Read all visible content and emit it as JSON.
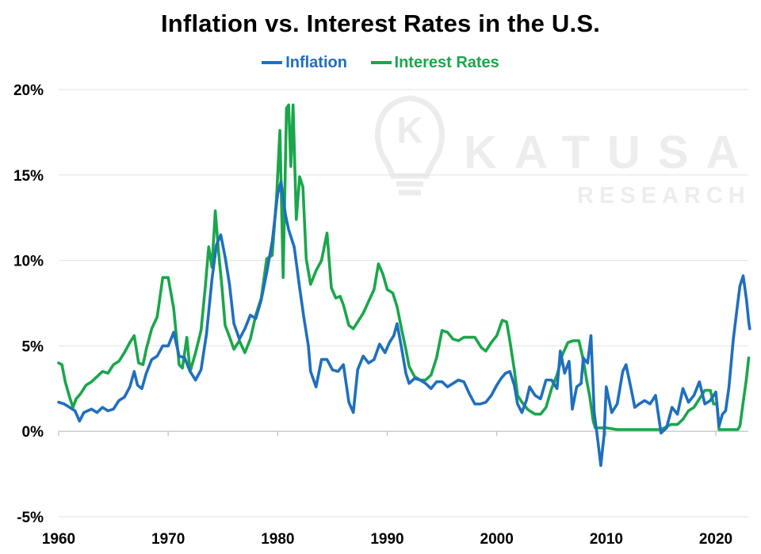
{
  "chart_data": {
    "type": "line",
    "title": "Inflation vs. Interest Rates in the U.S.",
    "xlabel": "",
    "ylabel": "",
    "xlim": [
      1960,
      2023
    ],
    "ylim": [
      -5,
      20
    ],
    "x_ticks": [
      1960,
      1970,
      1980,
      1990,
      2000,
      2010,
      2020
    ],
    "x_tick_labels": [
      "1960",
      "1970",
      "1980",
      "1990",
      "2000",
      "2010",
      "2020"
    ],
    "y_ticks": [
      -5,
      0,
      5,
      10,
      15,
      20
    ],
    "y_tick_labels": [
      "-5%",
      "0%",
      "5%",
      "10%",
      "15%",
      "20%"
    ],
    "grid": "horizontal",
    "legend_position": "top-center",
    "series": [
      {
        "name": "Inflation",
        "color": "#1f6fbf",
        "points": [
          [
            1960.0,
            1.7
          ],
          [
            1960.5,
            1.6
          ],
          [
            1961.0,
            1.4
          ],
          [
            1961.5,
            1.2
          ],
          [
            1961.9,
            0.6
          ],
          [
            1962.3,
            1.1
          ],
          [
            1963.0,
            1.3
          ],
          [
            1963.5,
            1.1
          ],
          [
            1964.0,
            1.4
          ],
          [
            1964.5,
            1.2
          ],
          [
            1965.0,
            1.3
          ],
          [
            1965.5,
            1.8
          ],
          [
            1966.0,
            2.0
          ],
          [
            1966.5,
            2.6
          ],
          [
            1966.9,
            3.5
          ],
          [
            1967.2,
            2.7
          ],
          [
            1967.6,
            2.5
          ],
          [
            1968.0,
            3.4
          ],
          [
            1968.5,
            4.2
          ],
          [
            1969.0,
            4.4
          ],
          [
            1969.5,
            5.0
          ],
          [
            1970.0,
            5.0
          ],
          [
            1970.5,
            5.8
          ],
          [
            1971.0,
            4.4
          ],
          [
            1971.5,
            4.3
          ],
          [
            1972.0,
            3.5
          ],
          [
            1972.5,
            3.0
          ],
          [
            1973.0,
            3.6
          ],
          [
            1973.5,
            5.7
          ],
          [
            1974.0,
            8.9
          ],
          [
            1974.4,
            10.9
          ],
          [
            1974.8,
            11.5
          ],
          [
            1975.2,
            10.2
          ],
          [
            1975.6,
            8.6
          ],
          [
            1976.0,
            6.3
          ],
          [
            1976.5,
            5.4
          ],
          [
            1977.0,
            6.0
          ],
          [
            1977.5,
            6.8
          ],
          [
            1978.0,
            6.6
          ],
          [
            1978.5,
            7.7
          ],
          [
            1979.0,
            9.3
          ],
          [
            1979.5,
            11.1
          ],
          [
            1980.0,
            13.9
          ],
          [
            1980.3,
            14.6
          ],
          [
            1980.7,
            12.7
          ],
          [
            1981.0,
            11.8
          ],
          [
            1981.5,
            10.8
          ],
          [
            1982.0,
            8.4
          ],
          [
            1982.4,
            6.6
          ],
          [
            1982.8,
            5.0
          ],
          [
            1983.0,
            3.5
          ],
          [
            1983.5,
            2.6
          ],
          [
            1984.0,
            4.2
          ],
          [
            1984.5,
            4.2
          ],
          [
            1985.0,
            3.6
          ],
          [
            1985.5,
            3.5
          ],
          [
            1986.0,
            3.9
          ],
          [
            1986.5,
            1.7
          ],
          [
            1986.9,
            1.1
          ],
          [
            1987.3,
            3.6
          ],
          [
            1987.8,
            4.4
          ],
          [
            1988.3,
            4.0
          ],
          [
            1988.8,
            4.2
          ],
          [
            1989.3,
            5.1
          ],
          [
            1989.8,
            4.6
          ],
          [
            1990.2,
            5.2
          ],
          [
            1990.6,
            5.6
          ],
          [
            1990.9,
            6.3
          ],
          [
            1991.3,
            4.9
          ],
          [
            1991.7,
            3.4
          ],
          [
            1992.0,
            2.8
          ],
          [
            1992.5,
            3.1
          ],
          [
            1993.0,
            3.0
          ],
          [
            1993.5,
            2.8
          ],
          [
            1994.0,
            2.5
          ],
          [
            1994.5,
            2.9
          ],
          [
            1995.0,
            2.9
          ],
          [
            1995.5,
            2.6
          ],
          [
            1996.0,
            2.8
          ],
          [
            1996.5,
            3.0
          ],
          [
            1997.0,
            2.9
          ],
          [
            1997.5,
            2.2
          ],
          [
            1998.0,
            1.6
          ],
          [
            1998.5,
            1.6
          ],
          [
            1999.0,
            1.7
          ],
          [
            1999.5,
            2.1
          ],
          [
            2000.0,
            2.7
          ],
          [
            2000.4,
            3.1
          ],
          [
            2000.8,
            3.4
          ],
          [
            2001.2,
            3.5
          ],
          [
            2001.6,
            2.7
          ],
          [
            2001.9,
            1.6
          ],
          [
            2002.3,
            1.1
          ],
          [
            2002.7,
            1.8
          ],
          [
            2003.0,
            2.6
          ],
          [
            2003.5,
            2.1
          ],
          [
            2004.0,
            1.9
          ],
          [
            2004.5,
            3.0
          ],
          [
            2005.0,
            3.0
          ],
          [
            2005.5,
            2.5
          ],
          [
            2005.8,
            4.7
          ],
          [
            2006.2,
            3.4
          ],
          [
            2006.6,
            4.1
          ],
          [
            2006.9,
            1.3
          ],
          [
            2007.3,
            2.6
          ],
          [
            2007.7,
            2.8
          ],
          [
            2007.9,
            4.3
          ],
          [
            2008.3,
            4.0
          ],
          [
            2008.6,
            5.6
          ],
          [
            2008.9,
            1.1
          ],
          [
            2009.2,
            -0.4
          ],
          [
            2009.5,
            -2.0
          ],
          [
            2009.8,
            -0.2
          ],
          [
            2010.0,
            2.6
          ],
          [
            2010.5,
            1.1
          ],
          [
            2011.0,
            1.6
          ],
          [
            2011.5,
            3.5
          ],
          [
            2011.8,
            3.9
          ],
          [
            2012.2,
            2.7
          ],
          [
            2012.6,
            1.4
          ],
          [
            2013.0,
            1.6
          ],
          [
            2013.5,
            1.8
          ],
          [
            2014.0,
            1.6
          ],
          [
            2014.5,
            2.1
          ],
          [
            2015.0,
            -0.1
          ],
          [
            2015.5,
            0.2
          ],
          [
            2016.0,
            1.4
          ],
          [
            2016.5,
            1.0
          ],
          [
            2017.0,
            2.5
          ],
          [
            2017.5,
            1.7
          ],
          [
            2018.0,
            2.1
          ],
          [
            2018.5,
            2.9
          ],
          [
            2019.0,
            1.6
          ],
          [
            2019.5,
            1.8
          ],
          [
            2020.0,
            2.3
          ],
          [
            2020.3,
            0.3
          ],
          [
            2020.6,
            1.0
          ],
          [
            2020.9,
            1.2
          ],
          [
            2021.2,
            2.6
          ],
          [
            2021.6,
            5.4
          ],
          [
            2021.9,
            7.0
          ],
          [
            2022.2,
            8.5
          ],
          [
            2022.5,
            9.1
          ],
          [
            2022.8,
            7.7
          ],
          [
            2023.0,
            6.4
          ],
          [
            2023.1,
            6.0
          ]
        ]
      },
      {
        "name": "Interest Rates",
        "color": "#1aa64b",
        "points": [
          [
            1960.0,
            4.0
          ],
          [
            1960.3,
            3.9
          ],
          [
            1960.6,
            2.9
          ],
          [
            1961.0,
            2.0
          ],
          [
            1961.3,
            1.4
          ],
          [
            1961.6,
            1.9
          ],
          [
            1962.0,
            2.2
          ],
          [
            1962.5,
            2.7
          ],
          [
            1963.0,
            2.9
          ],
          [
            1963.5,
            3.2
          ],
          [
            1964.0,
            3.5
          ],
          [
            1964.5,
            3.4
          ],
          [
            1965.0,
            3.9
          ],
          [
            1965.5,
            4.1
          ],
          [
            1966.0,
            4.6
          ],
          [
            1966.5,
            5.2
          ],
          [
            1966.9,
            5.6
          ],
          [
            1967.3,
            4.0
          ],
          [
            1967.7,
            3.9
          ],
          [
            1968.0,
            4.8
          ],
          [
            1968.5,
            6.0
          ],
          [
            1969.0,
            6.7
          ],
          [
            1969.5,
            9.0
          ],
          [
            1970.0,
            9.0
          ],
          [
            1970.5,
            7.2
          ],
          [
            1971.0,
            3.9
          ],
          [
            1971.3,
            3.7
          ],
          [
            1971.7,
            5.5
          ],
          [
            1972.0,
            3.5
          ],
          [
            1972.5,
            4.6
          ],
          [
            1973.0,
            5.9
          ],
          [
            1973.4,
            8.5
          ],
          [
            1973.7,
            10.8
          ],
          [
            1974.0,
            9.6
          ],
          [
            1974.3,
            12.9
          ],
          [
            1974.6,
            10.5
          ],
          [
            1974.9,
            8.5
          ],
          [
            1975.2,
            6.2
          ],
          [
            1975.5,
            5.7
          ],
          [
            1976.0,
            4.8
          ],
          [
            1976.5,
            5.3
          ],
          [
            1977.0,
            4.6
          ],
          [
            1977.5,
            5.4
          ],
          [
            1978.0,
            6.8
          ],
          [
            1978.5,
            7.8
          ],
          [
            1979.0,
            10.1
          ],
          [
            1979.5,
            10.3
          ],
          [
            1979.9,
            13.8
          ],
          [
            1980.2,
            17.6
          ],
          [
            1980.5,
            9.0
          ],
          [
            1980.8,
            18.9
          ],
          [
            1981.0,
            19.1
          ],
          [
            1981.2,
            15.5
          ],
          [
            1981.4,
            19.1
          ],
          [
            1981.7,
            12.4
          ],
          [
            1982.0,
            14.9
          ],
          [
            1982.3,
            14.3
          ],
          [
            1982.6,
            10.1
          ],
          [
            1983.0,
            8.6
          ],
          [
            1983.5,
            9.4
          ],
          [
            1984.0,
            10.0
          ],
          [
            1984.5,
            11.6
          ],
          [
            1984.9,
            8.4
          ],
          [
            1985.3,
            7.8
          ],
          [
            1985.7,
            7.9
          ],
          [
            1986.0,
            7.4
          ],
          [
            1986.5,
            6.2
          ],
          [
            1986.9,
            6.0
          ],
          [
            1987.3,
            6.4
          ],
          [
            1987.8,
            6.9
          ],
          [
            1988.3,
            7.6
          ],
          [
            1988.8,
            8.3
          ],
          [
            1989.2,
            9.8
          ],
          [
            1989.6,
            9.2
          ],
          [
            1990.0,
            8.3
          ],
          [
            1990.5,
            8.1
          ],
          [
            1990.9,
            7.3
          ],
          [
            1991.3,
            6.0
          ],
          [
            1991.7,
            4.8
          ],
          [
            1992.0,
            3.8
          ],
          [
            1992.5,
            3.2
          ],
          [
            1993.0,
            3.0
          ],
          [
            1993.5,
            3.0
          ],
          [
            1994.0,
            3.3
          ],
          [
            1994.5,
            4.3
          ],
          [
            1995.0,
            5.9
          ],
          [
            1995.5,
            5.8
          ],
          [
            1996.0,
            5.4
          ],
          [
            1996.5,
            5.3
          ],
          [
            1997.0,
            5.5
          ],
          [
            1997.5,
            5.5
          ],
          [
            1998.0,
            5.5
          ],
          [
            1998.6,
            4.9
          ],
          [
            1999.0,
            4.7
          ],
          [
            1999.5,
            5.2
          ],
          [
            2000.0,
            5.6
          ],
          [
            2000.5,
            6.5
          ],
          [
            2000.9,
            6.4
          ],
          [
            2001.2,
            5.3
          ],
          [
            2001.6,
            3.6
          ],
          [
            2001.9,
            2.1
          ],
          [
            2002.3,
            1.7
          ],
          [
            2002.8,
            1.3
          ],
          [
            2003.0,
            1.2
          ],
          [
            2003.5,
            1.0
          ],
          [
            2004.0,
            1.0
          ],
          [
            2004.5,
            1.4
          ],
          [
            2005.0,
            2.5
          ],
          [
            2005.5,
            3.3
          ],
          [
            2006.0,
            4.5
          ],
          [
            2006.5,
            5.2
          ],
          [
            2007.0,
            5.3
          ],
          [
            2007.5,
            5.3
          ],
          [
            2007.9,
            4.2
          ],
          [
            2008.2,
            3.0
          ],
          [
            2008.5,
            2.0
          ],
          [
            2008.8,
            0.6
          ],
          [
            2009.0,
            0.2
          ],
          [
            2010.0,
            0.2
          ],
          [
            2011.0,
            0.1
          ],
          [
            2012.0,
            0.1
          ],
          [
            2013.0,
            0.1
          ],
          [
            2014.0,
            0.1
          ],
          [
            2015.0,
            0.1
          ],
          [
            2015.9,
            0.4
          ],
          [
            2016.5,
            0.4
          ],
          [
            2017.0,
            0.7
          ],
          [
            2017.5,
            1.2
          ],
          [
            2018.0,
            1.4
          ],
          [
            2018.5,
            1.9
          ],
          [
            2019.0,
            2.4
          ],
          [
            2019.5,
            2.4
          ],
          [
            2019.8,
            1.6
          ],
          [
            2020.1,
            1.6
          ],
          [
            2020.3,
            0.1
          ],
          [
            2021.0,
            0.1
          ],
          [
            2021.5,
            0.1
          ],
          [
            2022.0,
            0.1
          ],
          [
            2022.2,
            0.3
          ],
          [
            2022.5,
            1.7
          ],
          [
            2022.8,
            3.1
          ],
          [
            2023.0,
            4.3
          ]
        ]
      }
    ],
    "watermark": {
      "line1": "KATUSA",
      "line2": "RESEARCH",
      "logo_letter": "K"
    }
  }
}
